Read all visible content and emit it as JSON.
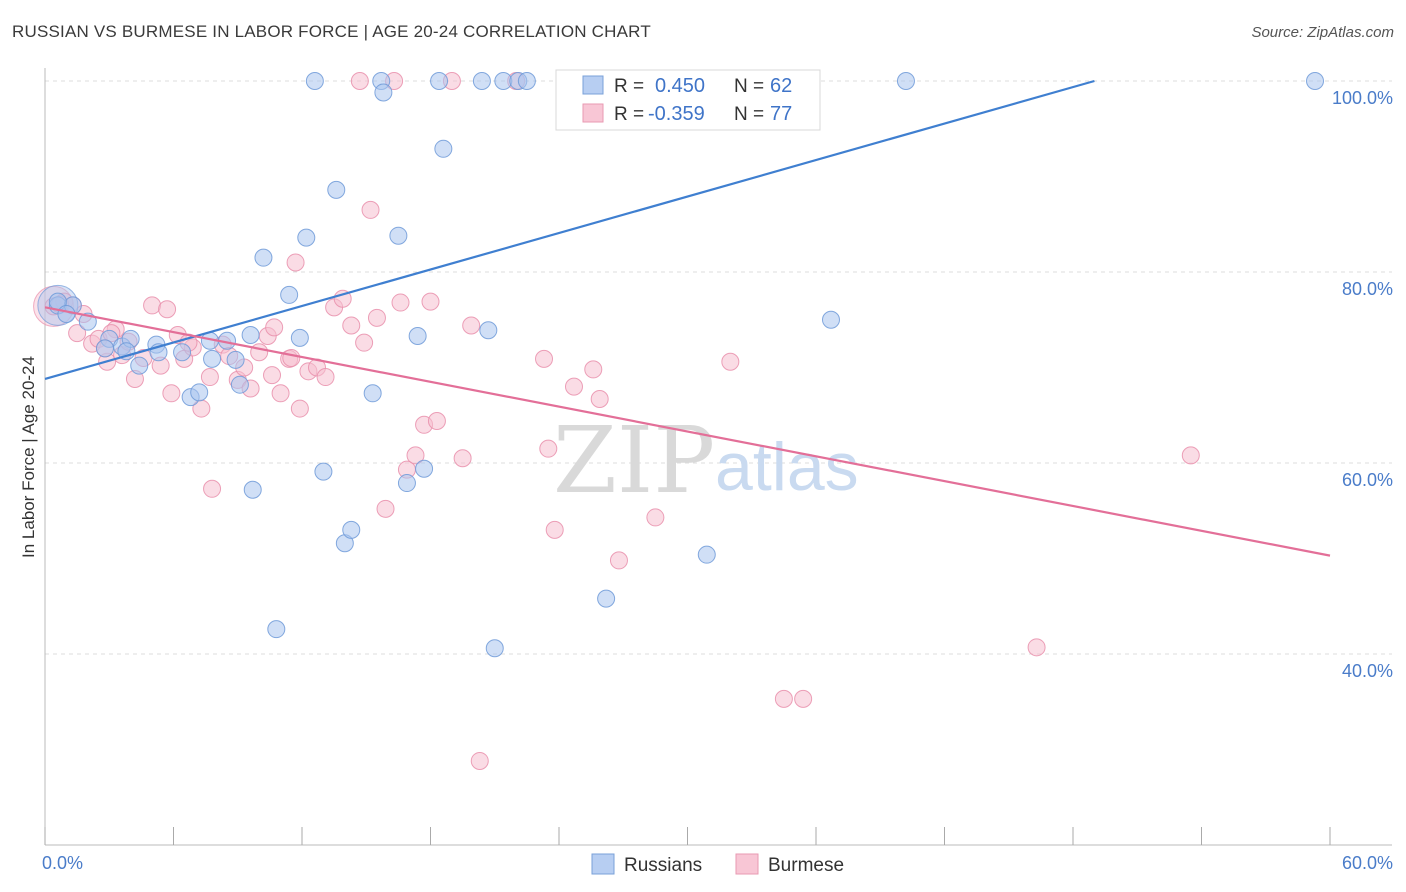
{
  "title": "RUSSIAN VS BURMESE IN LABOR FORCE | AGE 20-24 CORRELATION CHART",
  "source": "Source: ZipAtlas.com",
  "watermark": {
    "zip": "ZIP",
    "atlas": "atlas"
  },
  "legend_box": {
    "russians": {
      "r_label": "R =",
      "r_value": "0.450",
      "n_label": "N =",
      "n_value": "62"
    },
    "burmese": {
      "r_label": "R =",
      "r_value": "-0.359",
      "n_label": "N =",
      "n_value": "77"
    }
  },
  "bottom_legend": {
    "russians": "Russians",
    "burmese": "Burmese"
  },
  "colors": {
    "russians_fill": "#a9c4ee",
    "russians_stroke": "#6f9ad8",
    "russians_line": "#3f7fd0",
    "burmese_fill": "#f6bfd0",
    "burmese_stroke": "#e98fab",
    "burmese_line": "#e36f98",
    "grid": "#dcdcdc",
    "axis_label": "#4a7cc9"
  },
  "chart_data": {
    "type": "scatter",
    "title": "RUSSIAN VS BURMESE IN LABOR FORCE | AGE 20-24 CORRELATION CHART",
    "xlabel": "",
    "ylabel": "In Labor Force | Age 20-24",
    "xlim": [
      0,
      60
    ],
    "ylim": [
      20,
      100
    ],
    "x_tick_labels": [
      "0.0%",
      "60.0%"
    ],
    "y_tick_values": [
      100,
      80,
      60,
      40
    ],
    "y_tick_labels": [
      "100.0%",
      "80.0%",
      "60.0%",
      "40.0%"
    ],
    "grid": true,
    "legend_position": "top-center",
    "series": [
      {
        "name": "Russians",
        "r": 0.45,
        "n": 62,
        "trend": {
          "x": [
            0,
            49.0
          ],
          "y": [
            68.8,
            100
          ]
        },
        "points": [
          [
            0.6,
            76.5
          ],
          [
            1.3,
            76.5
          ],
          [
            2.0,
            74.8
          ],
          [
            3.0,
            73.0
          ],
          [
            3.6,
            72.2
          ],
          [
            4.0,
            73.0
          ],
          [
            3.8,
            71.7
          ],
          [
            4.4,
            70.2
          ],
          [
            5.2,
            72.4
          ],
          [
            5.3,
            71.6
          ],
          [
            6.4,
            71.6
          ],
          [
            6.8,
            66.9
          ],
          [
            7.2,
            67.4
          ],
          [
            7.7,
            72.8
          ],
          [
            7.8,
            70.9
          ],
          [
            8.5,
            72.8
          ],
          [
            8.9,
            70.8
          ],
          [
            9.1,
            68.2
          ],
          [
            9.6,
            73.4
          ],
          [
            9.7,
            57.2
          ],
          [
            10.2,
            81.5
          ],
          [
            10.8,
            42.6
          ],
          [
            11.4,
            77.6
          ],
          [
            11.9,
            73.1
          ],
          [
            12.2,
            83.6
          ],
          [
            12.6,
            100
          ],
          [
            13.0,
            59.1
          ],
          [
            13.6,
            88.6
          ],
          [
            14.0,
            51.6
          ],
          [
            14.3,
            53.0
          ],
          [
            15.3,
            67.3
          ],
          [
            15.7,
            100
          ],
          [
            15.8,
            98.8
          ],
          [
            16.5,
            83.8
          ],
          [
            16.9,
            57.9
          ],
          [
            17.4,
            73.3
          ],
          [
            17.7,
            59.4
          ],
          [
            18.4,
            100
          ],
          [
            18.6,
            92.9
          ],
          [
            20.4,
            100
          ],
          [
            20.7,
            73.9
          ],
          [
            21.0,
            40.6
          ],
          [
            21.4,
            100
          ],
          [
            22.1,
            100
          ],
          [
            22.5,
            100
          ],
          [
            24.5,
            100
          ],
          [
            25.5,
            100
          ],
          [
            26.2,
            45.8
          ],
          [
            27.4,
            100
          ],
          [
            28.3,
            100
          ],
          [
            29.4,
            100
          ],
          [
            30.9,
            50.4
          ],
          [
            32.3,
            100
          ],
          [
            34.3,
            100
          ],
          [
            35.7,
            100
          ],
          [
            36.7,
            75.0
          ],
          [
            40.2,
            100
          ],
          [
            59.3,
            100
          ],
          [
            26.8,
            100
          ],
          [
            0.6,
            76.9
          ],
          [
            1.0,
            75.6
          ],
          [
            2.8,
            72.0
          ]
        ],
        "big_points": [
          [
            0.6,
            76.5
          ]
        ]
      },
      {
        "name": "Burmese",
        "r": -0.359,
        "n": 77,
        "trend": {
          "x": [
            0,
            60
          ],
          "y": [
            76.3,
            50.3
          ]
        },
        "points": [
          [
            0.4,
            76.4
          ],
          [
            0.9,
            76.9
          ],
          [
            1.3,
            76.5
          ],
          [
            1.5,
            73.6
          ],
          [
            1.8,
            75.6
          ],
          [
            2.2,
            72.5
          ],
          [
            2.5,
            73.0
          ],
          [
            2.9,
            70.6
          ],
          [
            3.3,
            74.0
          ],
          [
            3.6,
            71.3
          ],
          [
            3.9,
            72.7
          ],
          [
            4.2,
            68.8
          ],
          [
            4.6,
            71.0
          ],
          [
            5.0,
            76.5
          ],
          [
            5.4,
            70.2
          ],
          [
            5.7,
            76.1
          ],
          [
            5.9,
            67.3
          ],
          [
            6.2,
            73.4
          ],
          [
            6.5,
            70.9
          ],
          [
            6.9,
            72.1
          ],
          [
            7.3,
            65.7
          ],
          [
            7.7,
            69.0
          ],
          [
            7.8,
            57.3
          ],
          [
            8.3,
            72.4
          ],
          [
            8.6,
            71.2
          ],
          [
            9.0,
            68.7
          ],
          [
            9.3,
            70.0
          ],
          [
            9.6,
            67.8
          ],
          [
            10.0,
            71.6
          ],
          [
            10.4,
            73.3
          ],
          [
            10.7,
            74.2
          ],
          [
            11.0,
            67.3
          ],
          [
            11.4,
            70.9
          ],
          [
            11.7,
            81.0
          ],
          [
            11.9,
            65.7
          ],
          [
            12.3,
            69.6
          ],
          [
            12.7,
            70.0
          ],
          [
            13.1,
            69.0
          ],
          [
            13.5,
            76.3
          ],
          [
            13.9,
            77.2
          ],
          [
            14.3,
            74.4
          ],
          [
            14.9,
            72.6
          ],
          [
            15.2,
            86.5
          ],
          [
            15.5,
            75.2
          ],
          [
            15.9,
            55.2
          ],
          [
            16.3,
            100
          ],
          [
            16.6,
            76.8
          ],
          [
            16.9,
            59.3
          ],
          [
            17.3,
            60.8
          ],
          [
            17.7,
            64.0
          ],
          [
            18.0,
            76.9
          ],
          [
            18.3,
            64.4
          ],
          [
            19.0,
            100
          ],
          [
            19.5,
            60.5
          ],
          [
            19.9,
            74.4
          ],
          [
            20.3,
            28.8
          ],
          [
            22.0,
            100
          ],
          [
            23.3,
            70.9
          ],
          [
            23.5,
            61.5
          ],
          [
            23.8,
            53.0
          ],
          [
            24.7,
            68.0
          ],
          [
            25.6,
            69.8
          ],
          [
            25.9,
            66.7
          ],
          [
            26.8,
            49.8
          ],
          [
            28.5,
            54.3
          ],
          [
            32.0,
            70.6
          ],
          [
            34.5,
            35.3
          ],
          [
            35.4,
            35.3
          ],
          [
            46.3,
            40.7
          ],
          [
            53.5,
            60.8
          ],
          [
            14.7,
            100
          ],
          [
            2.8,
            72.0
          ],
          [
            3.1,
            73.6
          ],
          [
            11.5,
            71.0
          ],
          [
            10.6,
            69.2
          ],
          [
            6.7,
            72.6
          ],
          [
            0.7,
            76.6
          ]
        ],
        "big_points": [
          [
            0.4,
            76.4
          ]
        ]
      }
    ]
  }
}
